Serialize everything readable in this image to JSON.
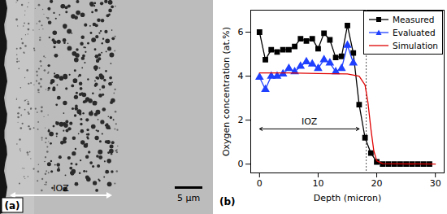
{
  "chart_data": [
    {
      "type": "image",
      "label": "(a)",
      "annotations": [
        "IOZ"
      ],
      "scale_bar": "5 μm"
    },
    {
      "type": "line",
      "label": "(b)",
      "xlabel": "Depth (micron)",
      "ylabel": "Oxygen concentration (at.%)",
      "xlim": [
        -1.5,
        31.5
      ],
      "ylim": [
        -0.4,
        7
      ],
      "xticks": [
        0,
        10,
        20,
        30
      ],
      "yticks": [
        0,
        2,
        4,
        6
      ],
      "grid": false,
      "legend": "upper right",
      "series": [
        {
          "name": "Measured",
          "color": "#000000",
          "marker": "square",
          "line_style": "solid",
          "x": [
            0,
            1,
            2,
            3,
            4,
            5,
            6,
            7,
            8,
            9,
            10,
            11,
            12,
            13,
            14,
            15,
            16,
            17,
            18,
            19,
            20,
            21,
            22,
            23,
            24,
            25,
            26,
            27,
            28,
            29
          ],
          "values": [
            6.0,
            4.75,
            5.2,
            5.1,
            5.2,
            5.2,
            5.35,
            5.7,
            5.6,
            5.7,
            5.25,
            5.95,
            5.65,
            4.85,
            4.9,
            6.3,
            5.05,
            2.7,
            1.2,
            0.5,
            0.1,
            0,
            0,
            0,
            0,
            0,
            0,
            0,
            0,
            0
          ]
        },
        {
          "name": "Evaluated",
          "color": "#2040ff",
          "marker": "triangle",
          "line_style": "solid",
          "x": [
            0,
            1,
            2,
            3,
            4,
            5,
            6,
            7,
            8,
            9,
            10,
            11,
            12,
            13,
            14,
            15,
            16
          ],
          "values": [
            3.95,
            3.4,
            4.0,
            4.0,
            4.1,
            4.35,
            4.2,
            4.45,
            4.65,
            4.55,
            4.35,
            4.75,
            4.6,
            4.2,
            4.35,
            5.4,
            4.6
          ]
        },
        {
          "name": "Simulation",
          "color": "#e00000",
          "marker": "none",
          "line_style": "solid",
          "x": [
            0,
            5,
            10,
            15,
            17,
            18,
            18.5,
            19,
            19.5,
            20,
            21,
            30
          ],
          "values": [
            4.15,
            4.15,
            4.12,
            4.1,
            4.0,
            3.6,
            2.8,
            1.6,
            0.6,
            0.15,
            0.02,
            0
          ]
        }
      ],
      "reference_line": {
        "x": 18.2,
        "line_style": "dotted"
      },
      "annotations": [
        {
          "text": "IOZ",
          "x": [
            0,
            17
          ],
          "y": 1.6
        }
      ]
    }
  ]
}
